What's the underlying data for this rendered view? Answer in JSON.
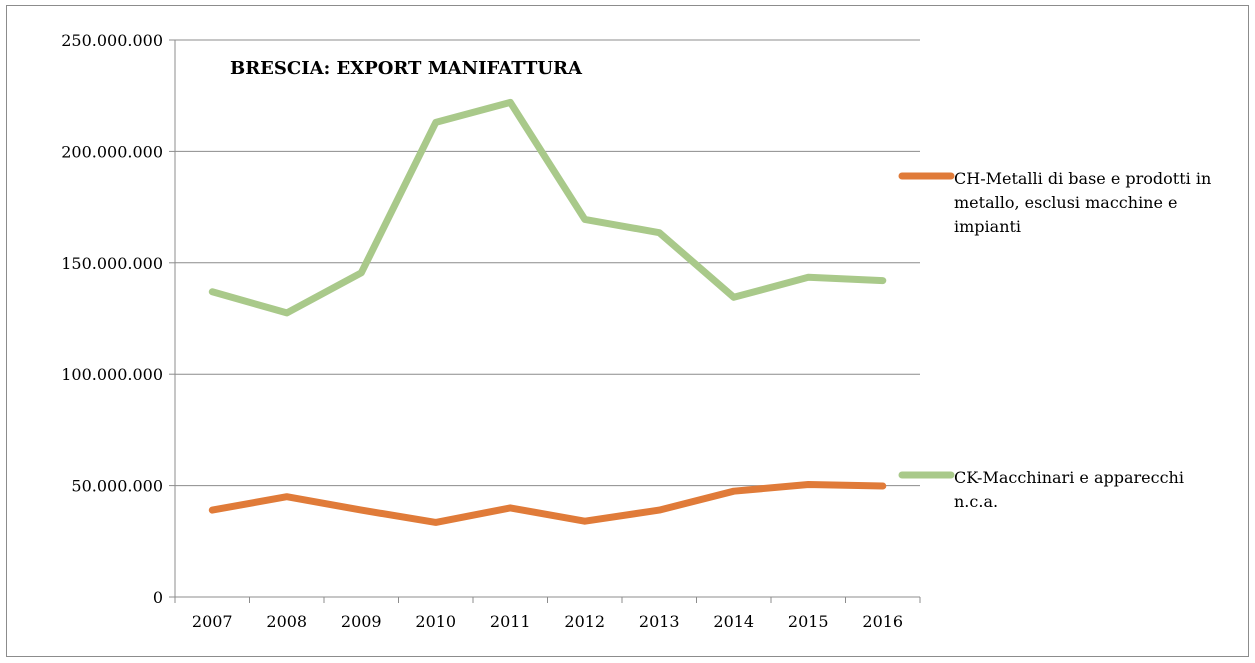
{
  "chart_data": {
    "type": "line",
    "title": "BRESCIA: EXPORT MANIFATTURA",
    "xlabel": "",
    "ylabel": "",
    "categories": [
      "2007",
      "2008",
      "2009",
      "2010",
      "2011",
      "2012",
      "2013",
      "2014",
      "2015",
      "2016"
    ],
    "y_ticks": [
      "0",
      "50.000.000",
      "100.000.000",
      "150.000.000",
      "200.000.000",
      "250.000.000"
    ],
    "ylim": [
      0,
      250000000
    ],
    "grid": true,
    "legend_position": "right",
    "series": [
      {
        "name": "CH-Metalli di base e prodotti in metallo, esclusi macchine e impianti",
        "color": "#e07b39",
        "values": [
          39000000,
          45000000,
          39000000,
          33500000,
          40000000,
          34000000,
          39000000,
          47500000,
          50500000,
          49800000
        ]
      },
      {
        "name": "CK-Macchinari e apparecchi n.c.a.",
        "color": "#a9c98a",
        "values": [
          137000000,
          127500000,
          145500000,
          213000000,
          222000000,
          169500000,
          163500000,
          134500000,
          143500000,
          142000000
        ]
      }
    ]
  }
}
